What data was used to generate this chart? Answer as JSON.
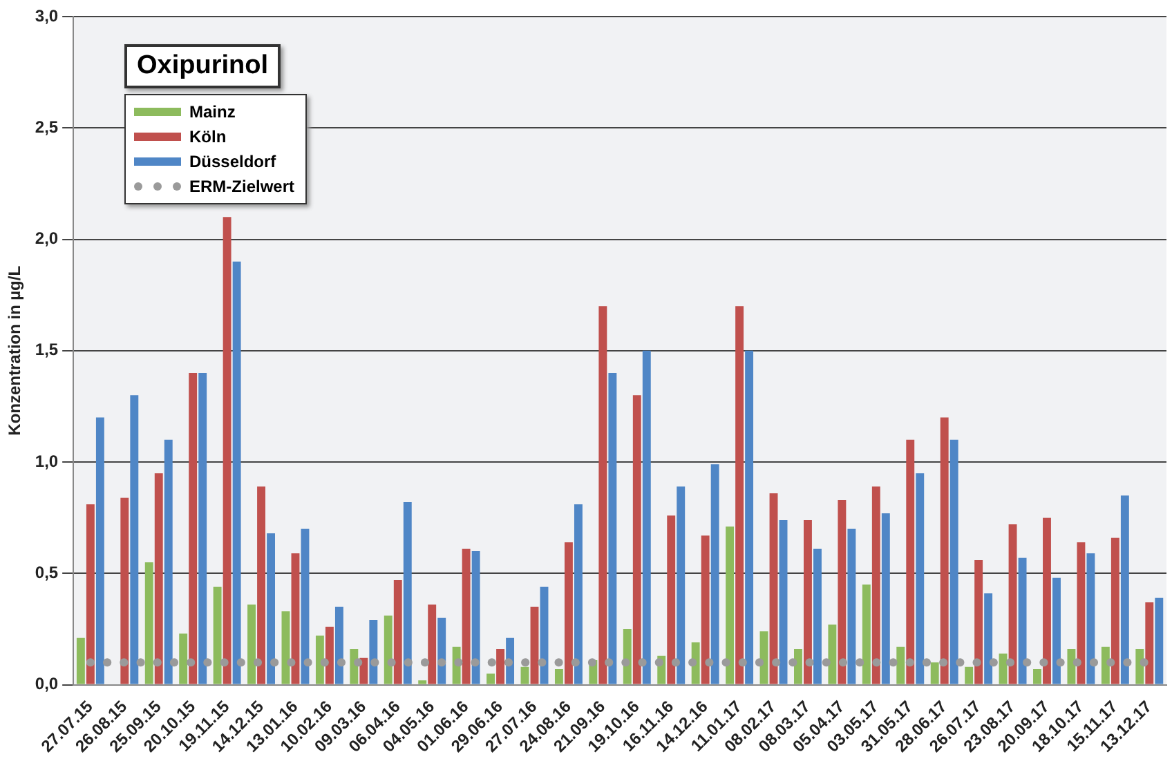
{
  "chart_data": {
    "type": "bar",
    "title": "Oxipurinol",
    "ylabel": "Konzentration in µg/L",
    "categories": [
      "27.07.15",
      "26.08.15",
      "25.09.15",
      "20.10.15",
      "19.11.15",
      "14.12.15",
      "13.01.16",
      "10.02.16",
      "09.03.16",
      "06.04.16",
      "04.05.16",
      "01.06.16",
      "29.06.16",
      "27.07.16",
      "24.08.16",
      "21.09.16",
      "19.10.16",
      "16.11.16",
      "14.12.16",
      "11.01.17",
      "08.02.17",
      "08.03.17",
      "05.04.17",
      "03.05.17",
      "31.05.17",
      "28.06.17",
      "26.07.17",
      "23.08.17",
      "20.09.17",
      "18.10.17",
      "15.11.17",
      "13.12.17"
    ],
    "series": [
      {
        "name": "Mainz",
        "color": "#8dbb5d",
        "values": [
          0.21,
          null,
          0.55,
          0.23,
          0.44,
          0.36,
          0.33,
          0.22,
          0.16,
          0.31,
          0.02,
          0.17,
          0.05,
          0.08,
          0.07,
          0.11,
          0.25,
          0.13,
          0.19,
          0.71,
          0.24,
          0.16,
          0.27,
          0.45,
          0.17,
          0.1,
          0.08,
          0.14,
          0.07,
          0.16,
          0.17,
          0.16
        ]
      },
      {
        "name": "Köln",
        "color": "#c0504d",
        "values": [
          0.81,
          0.84,
          0.95,
          1.4,
          2.1,
          0.89,
          0.59,
          0.26,
          0.12,
          0.47,
          0.36,
          0.61,
          0.16,
          0.35,
          0.64,
          1.7,
          1.3,
          0.76,
          0.67,
          1.7,
          0.86,
          0.74,
          0.83,
          0.89,
          1.1,
          1.2,
          0.56,
          0.72,
          0.75,
          0.64,
          0.66,
          0.37
        ]
      },
      {
        "name": "Düsseldorf",
        "color": "#4f86c6",
        "values": [
          1.2,
          1.3,
          1.1,
          1.4,
          1.9,
          0.68,
          0.7,
          0.35,
          0.29,
          0.82,
          0.3,
          0.6,
          0.21,
          0.44,
          0.81,
          1.4,
          1.5,
          0.89,
          0.99,
          1.5,
          0.74,
          0.61,
          0.7,
          0.77,
          0.95,
          1.1,
          0.41,
          0.57,
          0.48,
          0.59,
          0.85,
          0.39
        ]
      },
      {
        "name": "ERM-Zielwert",
        "type": "line",
        "color": "#9a9a9a",
        "line_style": "dotted",
        "values": [
          0.1,
          0.1,
          0.1,
          0.1,
          0.1,
          0.1,
          0.1,
          0.1,
          0.1,
          0.1,
          0.1,
          0.1,
          0.1,
          0.1,
          0.1,
          0.1,
          0.1,
          0.1,
          0.1,
          0.1,
          0.1,
          0.1,
          0.1,
          0.1,
          0.1,
          0.1,
          0.1,
          0.1,
          0.1,
          0.1,
          0.1,
          0.1
        ]
      }
    ],
    "ylim": [
      0,
      3
    ],
    "yticks": [
      {
        "value": 0,
        "label": "0,0"
      },
      {
        "value": 0.5,
        "label": "0,5"
      },
      {
        "value": 1,
        "label": "1,0"
      },
      {
        "value": 1.5,
        "label": "1,5"
      },
      {
        "value": 2,
        "label": "2,0"
      },
      {
        "value": 2.5,
        "label": "2,5"
      },
      {
        "value": 3,
        "label": "3,0"
      }
    ],
    "grid": "y",
    "legend": "top left"
  }
}
